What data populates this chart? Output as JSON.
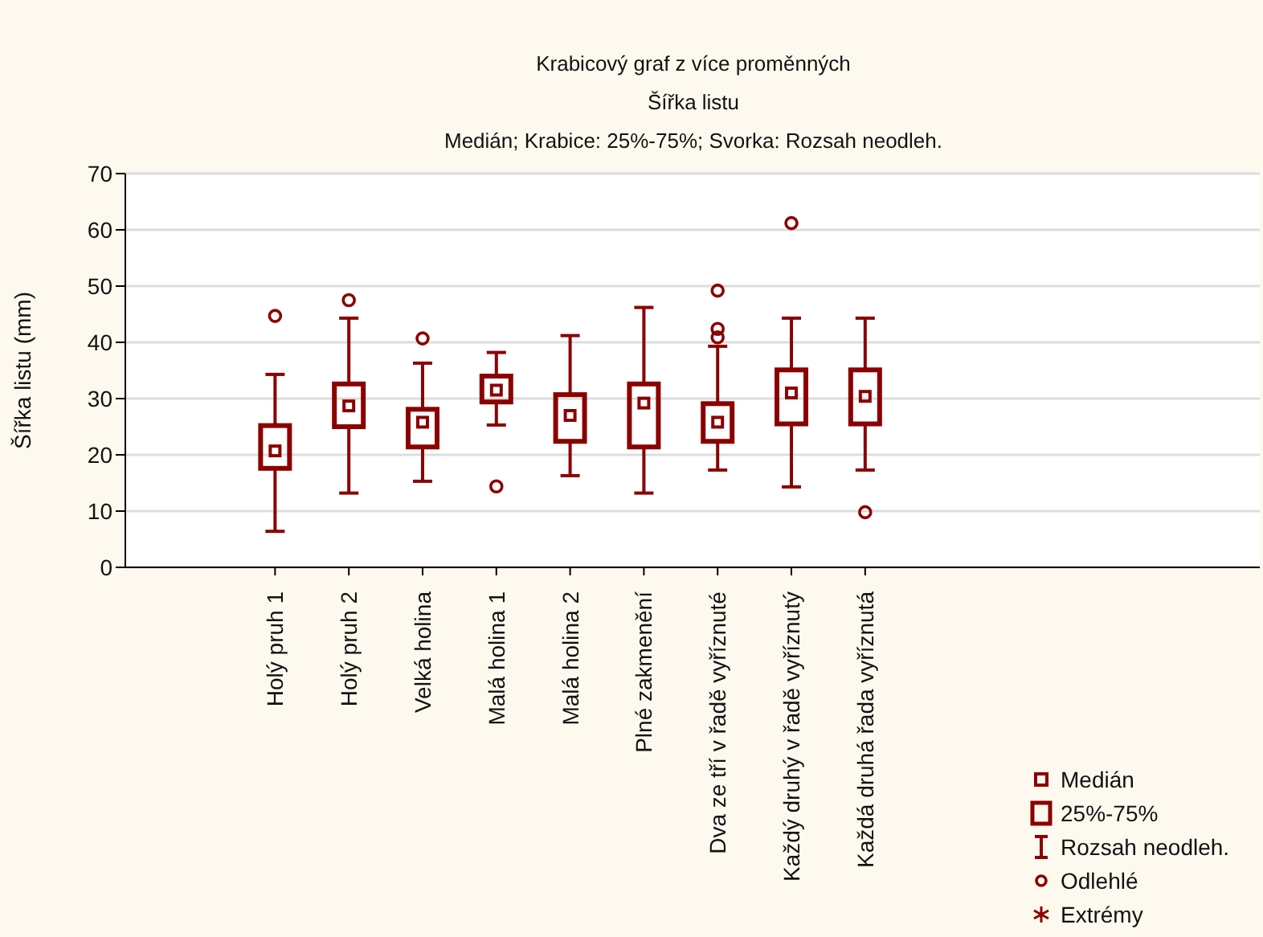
{
  "chart_data": {
    "type": "box",
    "title": "Krabicový graf z více proměnných",
    "subtitle": "Šířka listu\nMedián; Krabice: 25%-75%; Svorka: Rozsah neodleh.",
    "ylabel": "Šířka listu (mm)",
    "categories": [
      "Holý pruh 1",
      "Holý pruh 2",
      "Velká holina",
      "Malá holina 1",
      "Malá holina 2",
      "Plné zakmenění",
      "Dva ze tří v řadě vyříznuté",
      "Každý druhý v řadě vyříznutý",
      "Každá druhá řada vyříznutá"
    ],
    "boxes": [
      {
        "low": 6.4,
        "q1": 17.6,
        "median": 20.7,
        "q3": 25.2,
        "high": 34.3,
        "outliers": [
          44.7
        ]
      },
      {
        "low": 13.2,
        "q1": 25,
        "median": 28.7,
        "q3": 32.6,
        "high": 44.3,
        "outliers": [
          47.5
        ]
      },
      {
        "low": 15.3,
        "q1": 21.4,
        "median": 25.8,
        "q3": 28.1,
        "high": 36.3,
        "outliers": [
          40.7
        ]
      },
      {
        "low": 25.3,
        "q1": 29.4,
        "median": 31.5,
        "q3": 34,
        "high": 38.2,
        "outliers": [
          14.4
        ]
      },
      {
        "low": 16.3,
        "q1": 22.4,
        "median": 27,
        "q3": 30.7,
        "high": 41.2
      },
      {
        "low": 13.2,
        "q1": 21.4,
        "median": 29.2,
        "q3": 32.6,
        "high": 46.2
      },
      {
        "low": 17.3,
        "q1": 22.4,
        "median": 25.8,
        "q3": 29.1,
        "high": 39.3,
        "outliers": [
          49.2,
          42.4,
          40.9
        ]
      },
      {
        "low": 14.3,
        "q1": 25.5,
        "median": 31,
        "q3": 35.1,
        "high": 44.3,
        "outliers": [
          61.2
        ]
      },
      {
        "low": 17.3,
        "q1": 25.5,
        "median": 30.4,
        "q3": 35.1,
        "high": 44.3,
        "outliers": [
          9.8
        ]
      }
    ],
    "color": "#8b0000",
    "ylim": [
      0,
      70
    ],
    "yticks": [
      0,
      10,
      20,
      30,
      40,
      50,
      60,
      70
    ],
    "grid": "y",
    "marker": "square",
    "annotations": [
      "Medián",
      "25%-75%",
      "Rozsah neodleh.",
      "Odlehlé",
      "Extrémy"
    ]
  }
}
